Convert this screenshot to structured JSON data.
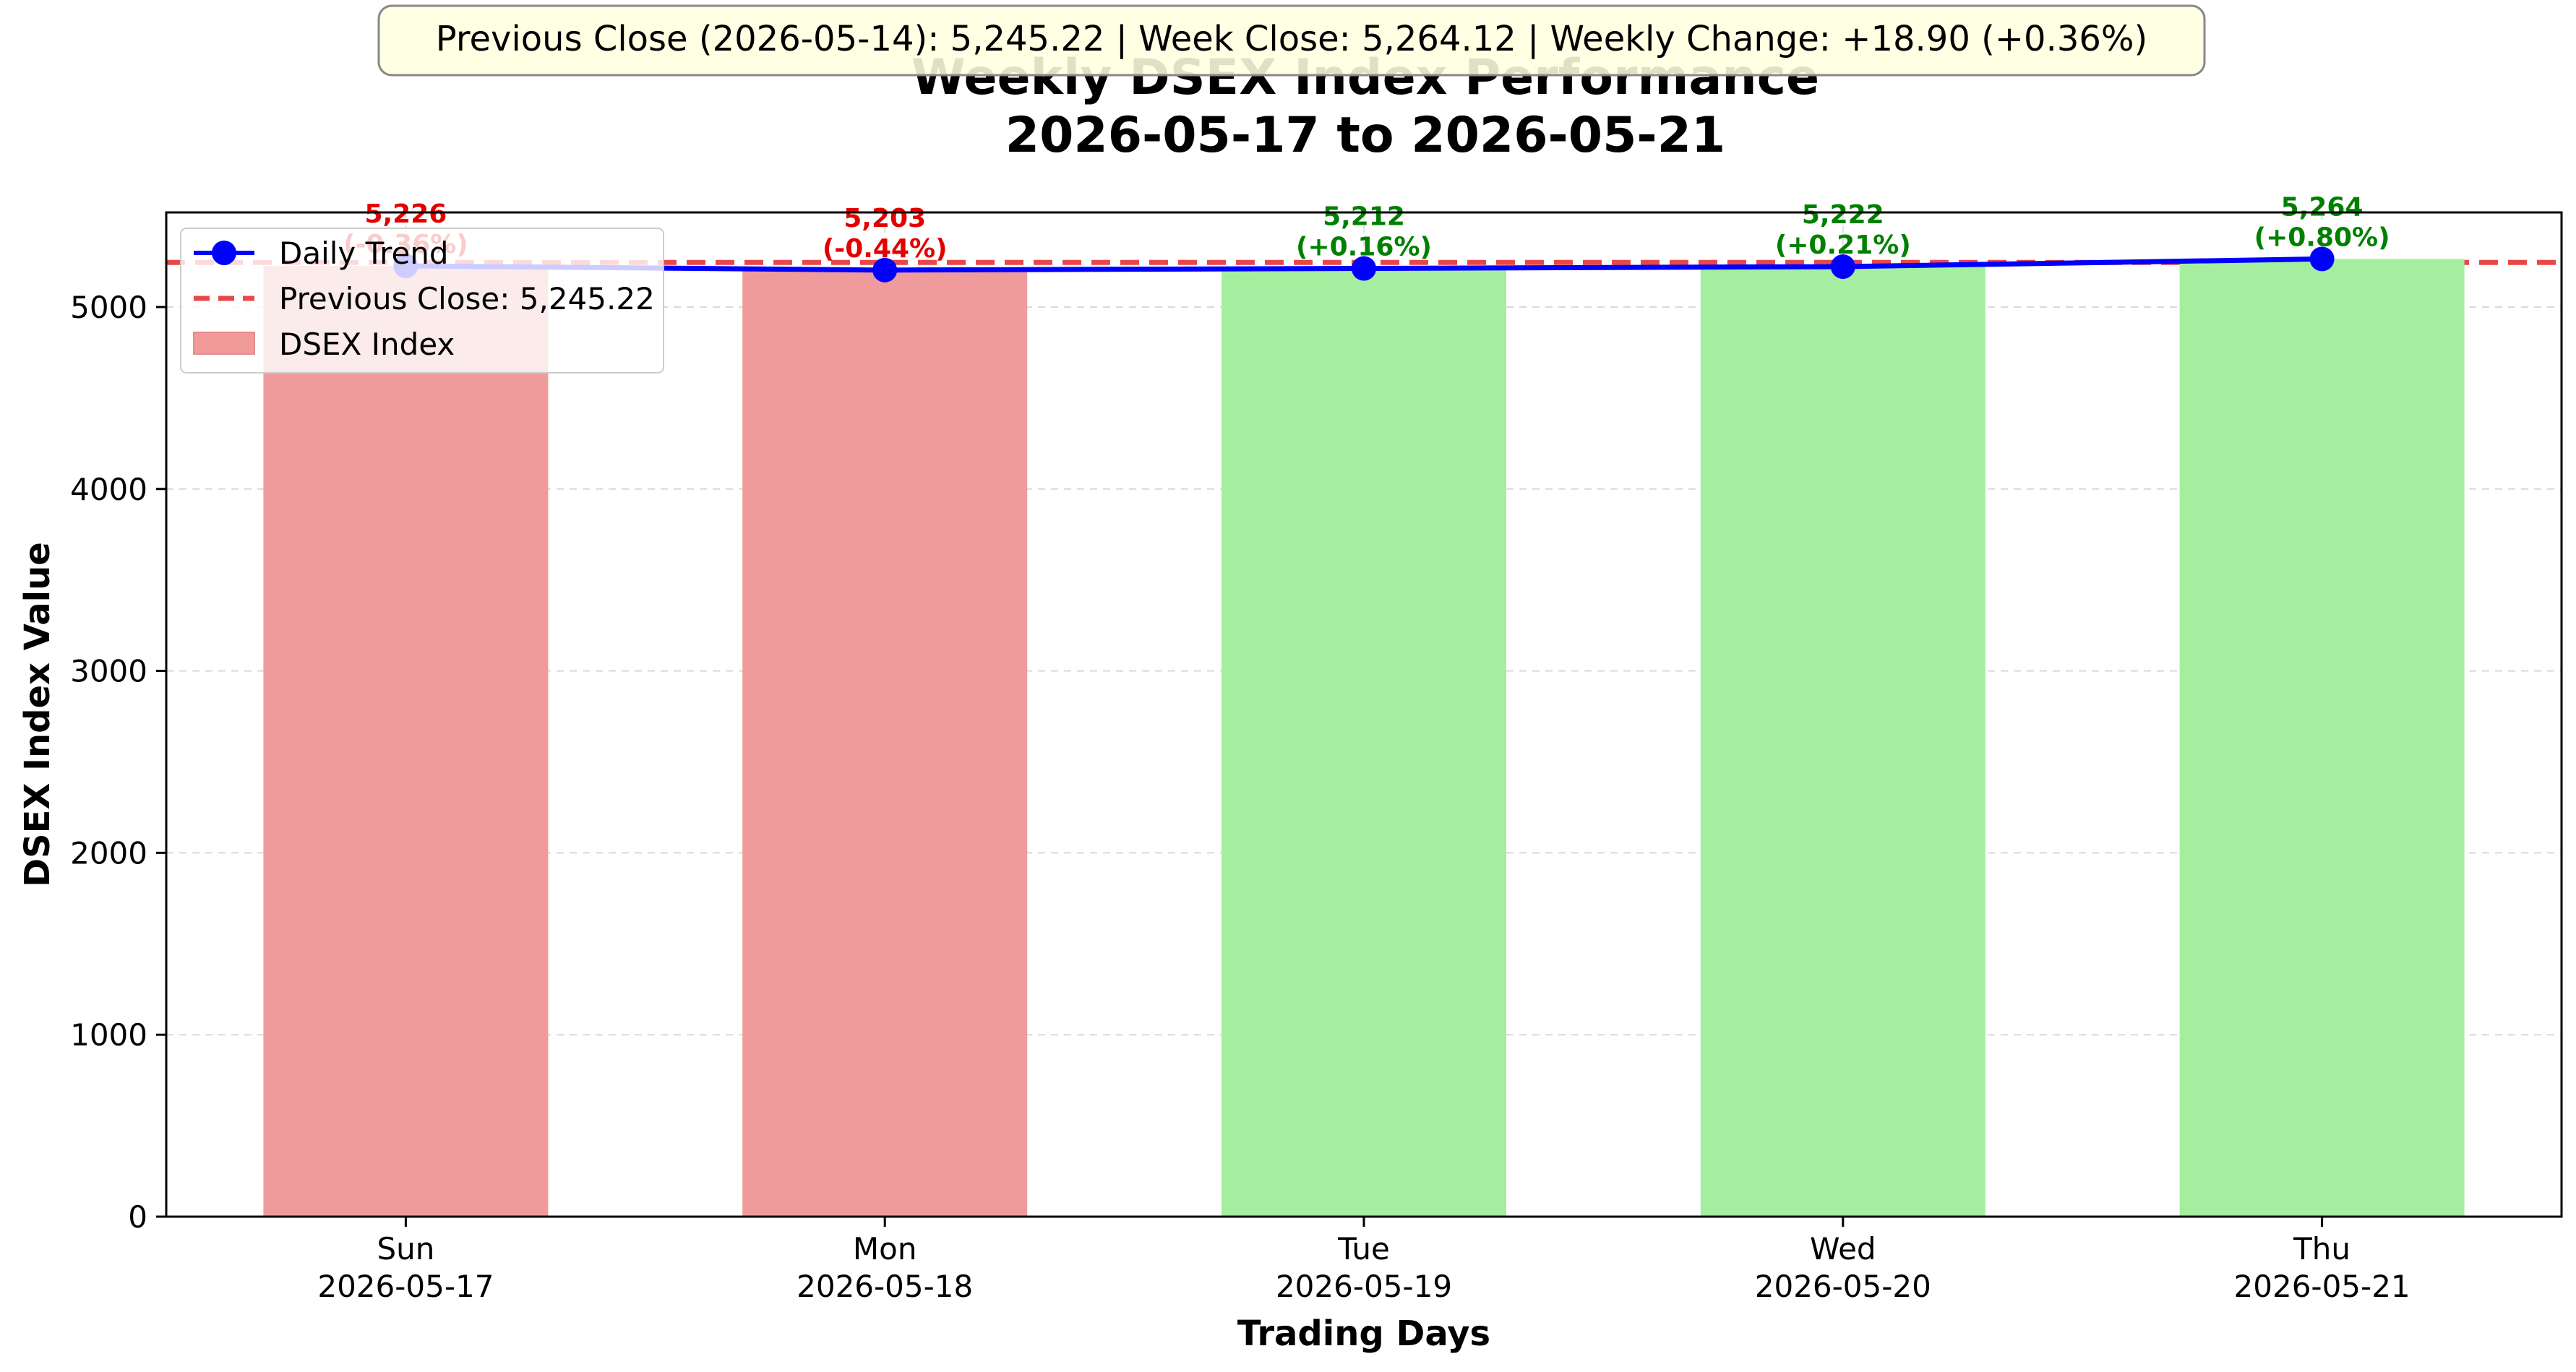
{
  "chart_data": {
    "type": "bar",
    "title_line1": "Weekly DSEX Index Performance",
    "title_line2": "2026-05-17 to 2026-05-21",
    "xlabel": "Trading Days",
    "ylabel": "DSEX Index Value",
    "ylim": [
      0,
      5520
    ],
    "yticks": [
      0,
      1000,
      2000,
      3000,
      4000,
      5000
    ],
    "ytick_labels": [
      "0",
      "1000",
      "2000",
      "3000",
      "4000",
      "5000"
    ],
    "grid": "y, dashed",
    "legend_placement": "top-left",
    "categories": [
      {
        "day": "Sun",
        "date": "2026-05-17"
      },
      {
        "day": "Mon",
        "date": "2026-05-18"
      },
      {
        "day": "Tue",
        "date": "2026-05-19"
      },
      {
        "day": "Wed",
        "date": "2026-05-20"
      },
      {
        "day": "Thu",
        "date": "2026-05-21"
      }
    ],
    "values": [
      5226,
      5203,
      5212,
      5222,
      5264.12
    ],
    "value_labels": [
      "5,226",
      "5,203",
      "5,212",
      "5,222",
      "5,264"
    ],
    "change_labels": [
      "(-0.36%)",
      "(-0.44%)",
      "(+0.16%)",
      "(+0.21%)",
      "(+0.80%)"
    ],
    "directions": [
      "down",
      "down",
      "up",
      "up",
      "up"
    ],
    "previous_close": 5245.22,
    "series": [
      {
        "name": "Daily Trend",
        "kind": "line",
        "color": "#0000ff"
      },
      {
        "name": "Previous Close: 5,245.22",
        "kind": "hline",
        "color": "#e8484a"
      },
      {
        "name": "DSEX Index",
        "kind": "bar",
        "color": "#f09a9a"
      }
    ],
    "colors": {
      "bar_down": "#f09b9b",
      "bar_up": "#a5eea0",
      "label_down": "#e50000",
      "label_up": "#008000",
      "trend_line": "#0000ff",
      "prev_close_line": "#e8484a",
      "info_box_bg": "#ffffe0"
    },
    "info_box": "Previous Close (2026-05-14): 5,245.22 | Week Close: 5,264.12 | Weekly Change: +18.90 (+0.36%)"
  }
}
